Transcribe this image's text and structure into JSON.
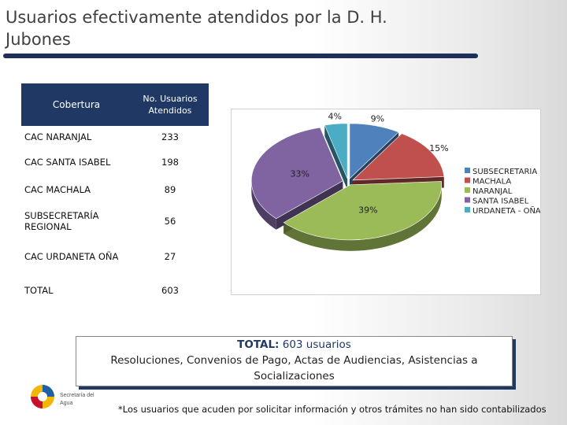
{
  "title": "Usuarios efectivamente atendidos por la D. H. Jubones",
  "table": {
    "header_col1": "Cobertura",
    "header_col2": "No. Usuarios Atendidos",
    "rows": [
      {
        "label": "CAC NARANJAL",
        "value": "233"
      },
      {
        "label": "CAC SANTA ISABEL",
        "value": "198"
      },
      {
        "label": "CAC MACHALA",
        "value": "89"
      },
      {
        "label": "SUBSECRETARÍA REGIONAL",
        "value": "56"
      },
      {
        "label": "CAC URDANETA OÑA",
        "value": "27"
      },
      {
        "label": "TOTAL",
        "value": "603"
      }
    ]
  },
  "chart_data": {
    "type": "pie",
    "categories": [
      "SUBSECRETARIA",
      "MACHALA",
      "NARANJAL",
      "SANTA ISABEL",
      "URDANETA - OÑA"
    ],
    "values": [
      9,
      15,
      39,
      33,
      4
    ],
    "data_labels": [
      "9%",
      "15%",
      "39%",
      "33%",
      "4%"
    ],
    "colors": [
      "#4f81bd",
      "#c0504d",
      "#9bbb59",
      "#8064a2",
      "#4bacc6"
    ],
    "legend_placement": "right"
  },
  "note": {
    "total_label": "TOTAL:",
    "total_value": "603 usuarios",
    "line2": "Resoluciones, Convenios de Pago, Actas de Audiencias, Asistencias a Socializaciones"
  },
  "logo": {
    "text_line1": "Secretaría del",
    "text_line2": "Agua"
  },
  "footnote": "*Los usuarios que acuden por solicitar información y otros trámites no han sido contabilizados"
}
